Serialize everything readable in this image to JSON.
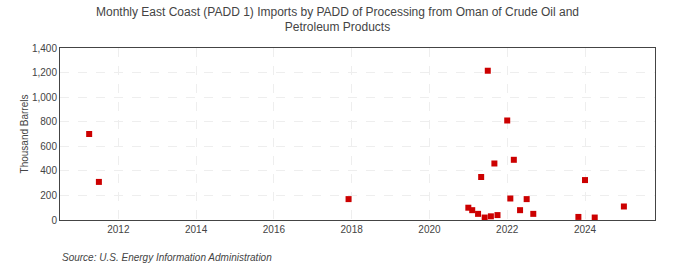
{
  "chart_data": {
    "type": "scatter",
    "title": "Monthly East Coast (PADD 1) Imports by PADD of Processing from Oman of Crude Oil and\nPetroleum Products",
    "ylabel": "Thousand Barrels",
    "annotations": [
      "Source: U.S. Energy Information Administration"
    ],
    "x": [
      2011.25,
      2011.5,
      2017.92,
      2021.0,
      2021.1,
      2021.25,
      2021.33,
      2021.42,
      2021.5,
      2021.58,
      2021.67,
      2021.75,
      2022.0,
      2022.08,
      2022.17,
      2022.33,
      2022.5,
      2022.67,
      2023.83,
      2024.0,
      2024.25,
      2025.0
    ],
    "values": [
      700,
      310,
      170,
      100,
      80,
      50,
      350,
      20,
      1215,
      30,
      460,
      40,
      810,
      175,
      490,
      80,
      170,
      50,
      25,
      325,
      20,
      110
    ],
    "color": "#cc0000",
    "marker": "square",
    "xlim": [
      2010.5,
      2025.8
    ],
    "xticks": [
      2012,
      2014,
      2016,
      2018,
      2020,
      2022,
      2024
    ],
    "ylim": [
      0,
      1400
    ],
    "yticks": [
      0,
      200,
      400,
      600,
      800,
      {
        "value": 1000,
        "label": "1,000"
      },
      {
        "value": 1200,
        "label": "1,200"
      },
      {
        "value": 1400,
        "label": "1,400"
      }
    ],
    "grid": true
  }
}
